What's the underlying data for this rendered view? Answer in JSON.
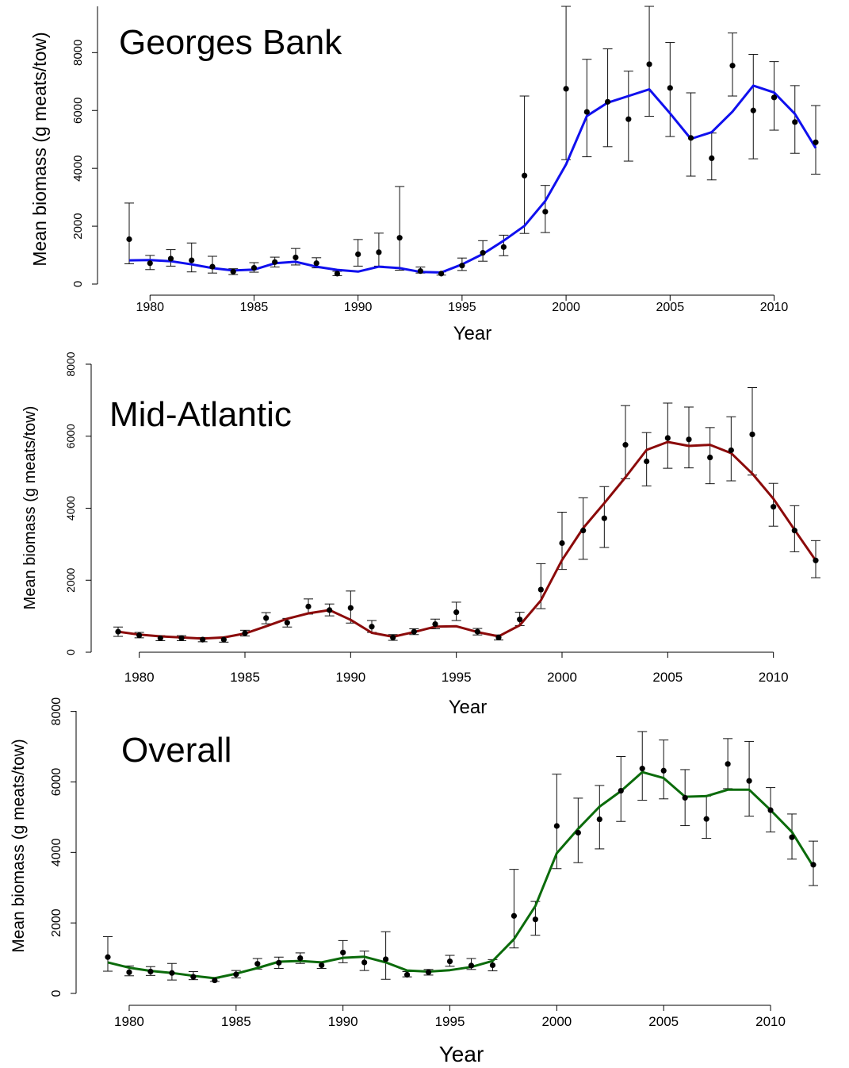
{
  "chart_data": [
    {
      "type": "line",
      "title": "Georges Bank",
      "xlabel": "Year",
      "ylabel": "Mean biomass (g meats/tow)",
      "xlim": [
        1979,
        2012
      ],
      "ylim": [
        0,
        9600
      ],
      "x_ticks": [
        "1980",
        "1985",
        "1990",
        "1995",
        "2000",
        "2005",
        "2010"
      ],
      "y_ticks": [
        "0",
        "2000",
        "4000",
        "6000",
        "8000"
      ],
      "grid": false,
      "line_color": "#1010ee",
      "series": [
        {
          "kind": "points_with_error_bars",
          "x": [
            1979,
            1980,
            1981,
            1982,
            1983,
            1984,
            1985,
            1986,
            1987,
            1988,
            1989,
            1990,
            1991,
            1992,
            1993,
            1994,
            1995,
            1996,
            1997,
            1998,
            1999,
            2000,
            2001,
            2002,
            2003,
            2004,
            2005,
            2006,
            2007,
            2008,
            2009,
            2010,
            2011,
            2012
          ],
          "y": [
            1550,
            720,
            880,
            820,
            600,
            430,
            560,
            760,
            920,
            720,
            360,
            1030,
            1100,
            1600,
            450,
            360,
            640,
            1080,
            1280,
            3750,
            2500,
            6750,
            5950,
            6300,
            5700,
            7600,
            6780,
            5050,
            4350,
            7550,
            6000,
            6450,
            5600,
            4900
          ],
          "lower": [
            700,
            500,
            620,
            420,
            380,
            330,
            410,
            590,
            660,
            560,
            290,
            620,
            620,
            480,
            380,
            310,
            470,
            790,
            980,
            1750,
            1780,
            4300,
            4400,
            4750,
            4250,
            5800,
            5100,
            3730,
            3600,
            6500,
            4330,
            5320,
            4520,
            3800
          ],
          "upper": [
            2800,
            990,
            1190,
            1420,
            960,
            530,
            740,
            930,
            1230,
            910,
            440,
            1540,
            1760,
            3370,
            590,
            420,
            900,
            1500,
            1690,
            6500,
            3410,
            9600,
            7770,
            8130,
            7360,
            9600,
            8350,
            6610,
            5220,
            8680,
            7940,
            7690,
            6860,
            6170
          ]
        },
        {
          "kind": "fitted_line",
          "x": [
            1979,
            1980,
            1981,
            1982,
            1983,
            1984,
            1985,
            1986,
            1987,
            1988,
            1989,
            1990,
            1991,
            1992,
            1993,
            1994,
            1995,
            1996,
            1997,
            1998,
            1999,
            2000,
            2001,
            2002,
            2003,
            2004,
            2005,
            2006,
            2007,
            2008,
            2009,
            2010,
            2011,
            2012
          ],
          "y": [
            820,
            830,
            790,
            680,
            550,
            470,
            500,
            720,
            770,
            600,
            490,
            430,
            600,
            550,
            420,
            400,
            680,
            1040,
            1500,
            2010,
            2870,
            4140,
            5810,
            6270,
            6500,
            6730,
            5900,
            5020,
            5250,
            5960,
            6860,
            6620,
            5880,
            4700
          ]
        }
      ]
    },
    {
      "type": "line",
      "title": "Mid-Atlantic",
      "xlabel": "Year",
      "ylabel": "Mean biomass (g meats/tow)",
      "xlim": [
        1979,
        2012
      ],
      "ylim": [
        0,
        8000
      ],
      "x_ticks": [
        "1980",
        "1985",
        "1990",
        "1995",
        "2000",
        "2005",
        "2010"
      ],
      "y_ticks": [
        "0",
        "2000",
        "4000",
        "6000",
        "8000"
      ],
      "grid": false,
      "line_color": "#8b0a0a",
      "series": [
        {
          "kind": "points_with_error_bars",
          "x": [
            1979,
            1980,
            1981,
            1982,
            1983,
            1984,
            1985,
            1986,
            1987,
            1988,
            1989,
            1990,
            1991,
            1992,
            1993,
            1994,
            1995,
            1996,
            1997,
            1998,
            1999,
            2000,
            2001,
            2002,
            2003,
            2004,
            2005,
            2006,
            2007,
            2008,
            2009,
            2010,
            2011,
            2012
          ],
          "y": [
            570,
            470,
            390,
            390,
            350,
            350,
            530,
            950,
            820,
            1270,
            1170,
            1230,
            710,
            410,
            570,
            780,
            1110,
            570,
            410,
            910,
            1740,
            3030,
            3380,
            3720,
            5760,
            5300,
            5950,
            5910,
            5410,
            5610,
            6050,
            4040,
            3380,
            2550
          ],
          "lower": [
            440,
            400,
            320,
            320,
            290,
            280,
            450,
            790,
            700,
            1060,
            1010,
            810,
            550,
            330,
            490,
            650,
            880,
            480,
            340,
            740,
            1210,
            2300,
            2580,
            2910,
            4820,
            4620,
            5110,
            5120,
            4680,
            4760,
            4920,
            3500,
            2790,
            2070
          ],
          "upper": [
            700,
            550,
            460,
            460,
            410,
            420,
            610,
            1100,
            940,
            1480,
            1340,
            1700,
            880,
            490,
            650,
            920,
            1390,
            660,
            480,
            1110,
            2460,
            3890,
            4290,
            4600,
            6850,
            6100,
            6920,
            6810,
            6240,
            6540,
            7350,
            4690,
            4070,
            3100
          ]
        },
        {
          "kind": "fitted_line",
          "x": [
            1979,
            1980,
            1981,
            1982,
            1983,
            1984,
            1985,
            1986,
            1987,
            1988,
            1989,
            1990,
            1991,
            1992,
            1993,
            1994,
            1995,
            1996,
            1997,
            1998,
            1999,
            2000,
            2001,
            2002,
            2003,
            2004,
            2005,
            2006,
            2007,
            2008,
            2009,
            2010,
            2011,
            2012
          ],
          "y": [
            570,
            490,
            440,
            410,
            380,
            410,
            520,
            720,
            930,
            1080,
            1170,
            900,
            540,
            430,
            560,
            710,
            720,
            560,
            440,
            750,
            1440,
            2560,
            3450,
            4140,
            4860,
            5620,
            5840,
            5730,
            5760,
            5530,
            4960,
            4260,
            3400,
            2550
          ]
        }
      ]
    },
    {
      "type": "line",
      "title": "Overall",
      "xlabel": "Year",
      "ylabel": "Mean biomass (g meats/tow)",
      "xlim": [
        1979,
        2012
      ],
      "ylim": [
        0,
        8600
      ],
      "x_ticks": [
        "1980",
        "1985",
        "1990",
        "1995",
        "2000",
        "2005",
        "2010"
      ],
      "y_ticks": [
        "0",
        "2000",
        "4000",
        "6000",
        "8000"
      ],
      "grid": false,
      "line_color": "#0b6b0b",
      "series": [
        {
          "kind": "points_with_error_bars",
          "x": [
            1979,
            1980,
            1981,
            1982,
            1983,
            1984,
            1985,
            1986,
            1987,
            1988,
            1989,
            1990,
            1991,
            1992,
            1993,
            1994,
            1995,
            1996,
            1997,
            1998,
            1999,
            2000,
            2001,
            2002,
            2003,
            2004,
            2005,
            2006,
            2007,
            2008,
            2009,
            2010,
            2011,
            2012
          ],
          "y": [
            1030,
            600,
            620,
            580,
            470,
            370,
            540,
            840,
            870,
            1000,
            800,
            1160,
            880,
            970,
            530,
            600,
            910,
            790,
            800,
            2200,
            2100,
            4750,
            4560,
            4940,
            5750,
            6380,
            6320,
            5550,
            4950,
            6510,
            6030,
            5200,
            4430,
            3650
          ],
          "lower": [
            630,
            500,
            510,
            380,
            390,
            340,
            440,
            690,
            710,
            850,
            710,
            870,
            650,
            400,
            470,
            520,
            770,
            680,
            640,
            1290,
            1650,
            3540,
            3710,
            4100,
            4880,
            5480,
            5520,
            4760,
            4400,
            5810,
            5030,
            4580,
            3810,
            3060
          ],
          "upper": [
            1610,
            780,
            760,
            850,
            620,
            430,
            650,
            990,
            1030,
            1150,
            900,
            1500,
            1200,
            1750,
            620,
            680,
            1080,
            990,
            960,
            3520,
            2610,
            6220,
            5540,
            5900,
            6720,
            7430,
            7190,
            6350,
            5600,
            7230,
            7150,
            5840,
            5090,
            4320
          ]
        },
        {
          "kind": "fitted_line",
          "x": [
            1979,
            1980,
            1981,
            1982,
            1983,
            1984,
            1985,
            1986,
            1987,
            1988,
            1989,
            1990,
            1991,
            1992,
            1993,
            1994,
            1995,
            1996,
            1997,
            1998,
            1999,
            2000,
            2001,
            2002,
            2003,
            2004,
            2005,
            2006,
            2007,
            2008,
            2009,
            2010,
            2011,
            2012
          ],
          "y": [
            880,
            730,
            640,
            580,
            500,
            430,
            560,
            720,
            900,
            920,
            880,
            1010,
            1040,
            880,
            650,
            620,
            660,
            750,
            920,
            1540,
            2480,
            3980,
            4670,
            5300,
            5740,
            6280,
            6110,
            5580,
            5600,
            5780,
            5780,
            5200,
            4580,
            3600
          ]
        }
      ]
    }
  ]
}
